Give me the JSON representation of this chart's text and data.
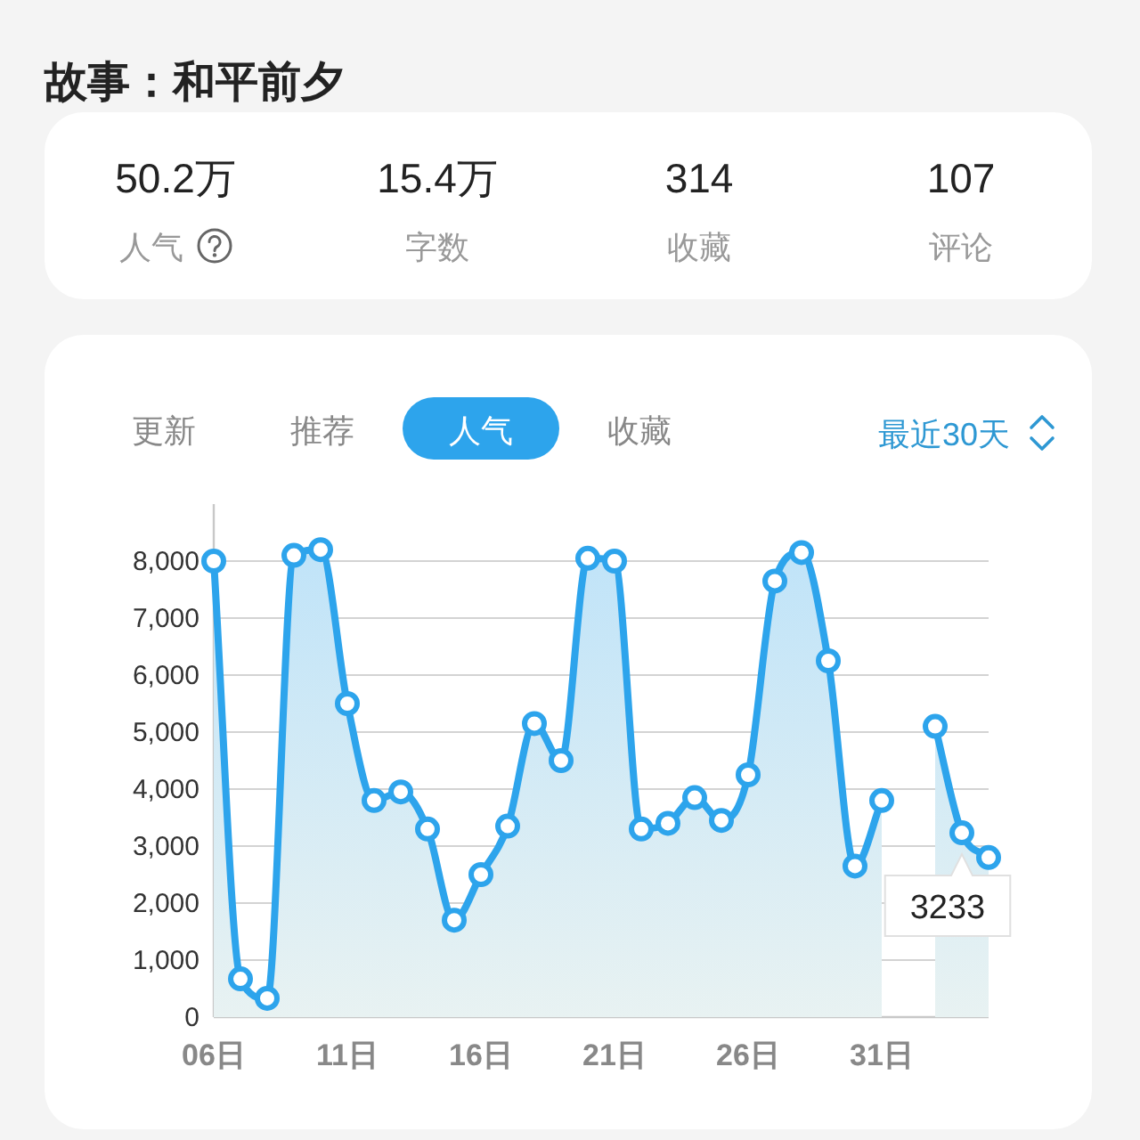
{
  "chart_data": [
    {
      "type": "other",
      "title": "故事：和平前夕",
      "annotations": [
        "50.2万",
        "15.4万",
        "314",
        "107",
        "人气",
        "字数",
        "收藏",
        "评论"
      ]
    },
    {
      "type": "area",
      "title": "人气",
      "subtitle": "最近30天",
      "annotations": [
        "更新",
        "推荐",
        "收藏"
      ],
      "categories": [
        "06日",
        null,
        null,
        null,
        null,
        "11日",
        null,
        null,
        null,
        null,
        "16日",
        null,
        null,
        null,
        null,
        "21日",
        null,
        null,
        null,
        null,
        "26日",
        null,
        null,
        null,
        null,
        "31日",
        null,
        null,
        null,
        null
      ],
      "values": [
        8000,
        670,
        330,
        8100,
        8200,
        5500,
        3800,
        3950,
        3300,
        1700,
        2500,
        3350,
        5150,
        4500,
        8050,
        8000,
        3300,
        3400,
        3850,
        3450,
        4250,
        7650,
        8150,
        6250,
        2650,
        3800,
        null,
        5100,
        3233,
        2800
      ],
      "value_labels": [
        null,
        null,
        null,
        null,
        null,
        null,
        null,
        null,
        null,
        null,
        null,
        null,
        null,
        null,
        null,
        null,
        null,
        null,
        null,
        null,
        null,
        null,
        null,
        null,
        null,
        null,
        null,
        null,
        "3233",
        null
      ],
      "color": "#2da4ec",
      "ylim": [
        0,
        9000
      ],
      "yticks": [
        0,
        {
          "value": 1000,
          "label": "1,000"
        },
        {
          "value": 2000,
          "label": "2,000"
        },
        {
          "value": 3000,
          "label": "3,000"
        },
        {
          "value": 4000,
          "label": "4,000"
        },
        {
          "value": 5000,
          "label": "5,000"
        },
        {
          "value": 6000,
          "label": "6,000"
        },
        {
          "value": 7000,
          "label": "7,000"
        },
        {
          "value": 8000,
          "label": "8,000"
        }
      ],
      "grid": "y",
      "marker": "circle"
    }
  ]
}
